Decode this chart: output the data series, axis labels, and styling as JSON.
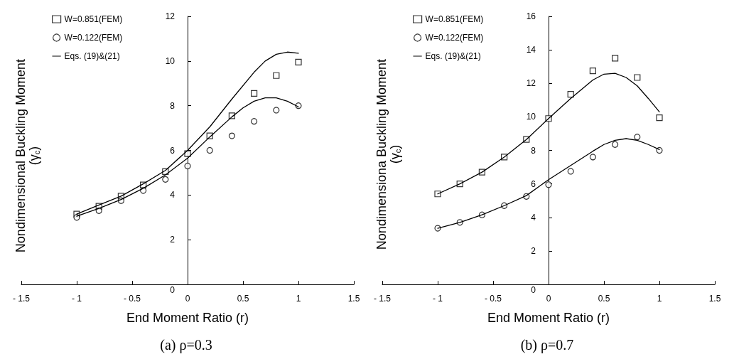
{
  "chart_data": [
    {
      "type": "scatter",
      "title": "(a) ρ=0.3",
      "xlabel": "End Moment Ratio (r)",
      "ylabel": "Nondimensional Buckling Moment\n(γ$_{c}$)",
      "xlim": [
        -1.5,
        1.5
      ],
      "xticks": [
        {
          "value": -1.5,
          "label": "- 1.5"
        },
        {
          "value": -1,
          "label": "- 1"
        },
        {
          "value": -0.5,
          "label": "- 0.5"
        },
        0,
        0.5,
        1,
        1.5
      ],
      "ylim": [
        0,
        12
      ],
      "yticks": [
        0,
        2,
        4,
        6,
        8,
        10,
        12
      ],
      "grid": false,
      "legend": "top left",
      "series": [
        {
          "name": "W=0.851(FEM)",
          "marker": "square",
          "color": "#000000",
          "x": [
            -1,
            -0.8,
            -0.6,
            -0.4,
            -0.2,
            0,
            0.2,
            0.4,
            0.6,
            0.8,
            1
          ],
          "values": [
            3.15,
            3.5,
            3.95,
            4.45,
            5.05,
            5.85,
            6.65,
            7.55,
            8.55,
            9.35,
            9.95
          ]
        },
        {
          "name": "W=0.122(FEM)",
          "marker": "circle",
          "color": "#000000",
          "x": [
            -1,
            -0.8,
            -0.6,
            -0.4,
            -0.2,
            0,
            0.2,
            0.4,
            0.6,
            0.8,
            1
          ],
          "values": [
            3.0,
            3.3,
            3.75,
            4.2,
            4.7,
            5.3,
            6.0,
            6.65,
            7.3,
            7.8,
            8.0
          ]
        },
        {
          "name": "Eqs. (19)&(21)",
          "type": "line",
          "marker": "none",
          "line_style": "solid",
          "color": "#000000",
          "x": [
            -1,
            -0.8,
            -0.6,
            -0.4,
            -0.2,
            0,
            0.2,
            0.4,
            0.6,
            0.7,
            0.8,
            0.9,
            1
          ],
          "values": [
            3.15,
            3.55,
            3.95,
            4.5,
            5.1,
            6.0,
            7.05,
            8.3,
            9.5,
            10.0,
            10.3,
            10.4,
            10.35
          ]
        },
        {
          "type": "line",
          "marker": "none",
          "line_style": "solid",
          "color": "#000000",
          "x": [
            -1,
            -0.8,
            -0.6,
            -0.4,
            -0.2,
            0,
            0.2,
            0.4,
            0.5,
            0.6,
            0.7,
            0.8,
            0.9,
            1
          ],
          "values": [
            3.05,
            3.4,
            3.8,
            4.3,
            4.9,
            5.65,
            6.6,
            7.5,
            7.9,
            8.2,
            8.35,
            8.35,
            8.2,
            7.95
          ]
        }
      ]
    },
    {
      "type": "scatter",
      "title": "(b) ρ=0.7",
      "xlabel": "End Moment Ratio (r)",
      "ylabel": "Nondimensiona Buckling Moment\n(γ$_{c}$)",
      "xlim": [
        -1.5,
        1.5
      ],
      "xticks": [
        {
          "value": -1.5,
          "label": "- 1.5"
        },
        {
          "value": -1,
          "label": "- 1"
        },
        {
          "value": -0.5,
          "label": "- 0.5"
        },
        0,
        0.5,
        1,
        1.5
      ],
      "ylim": [
        0,
        16
      ],
      "yticks": [
        0,
        2,
        4,
        6,
        8,
        10,
        12,
        14,
        16
      ],
      "grid": false,
      "legend": "top left",
      "series": [
        {
          "name": "W=0.851(FEM)",
          "marker": "square",
          "color": "#000000",
          "x": [
            -1,
            -0.8,
            -0.6,
            -0.4,
            -0.2,
            0,
            0.2,
            0.4,
            0.6,
            0.8,
            1
          ],
          "values": [
            5.4,
            6.0,
            6.7,
            7.6,
            8.65,
            9.9,
            11.35,
            12.75,
            13.5,
            12.35,
            9.95
          ]
        },
        {
          "name": "W=0.122(FEM)",
          "marker": "circle",
          "color": "#000000",
          "x": [
            -1,
            -0.8,
            -0.6,
            -0.4,
            -0.2,
            0,
            0.2,
            0.4,
            0.6,
            0.8,
            1
          ],
          "values": [
            3.35,
            3.7,
            4.15,
            4.7,
            5.25,
            5.95,
            6.75,
            7.6,
            8.35,
            8.8,
            8.0
          ]
        },
        {
          "name": "Eqs. (19)&(21)",
          "type": "line",
          "marker": "none",
          "line_style": "solid",
          "color": "#000000",
          "x": [
            -1,
            -0.8,
            -0.6,
            -0.4,
            -0.2,
            0,
            0.2,
            0.4,
            0.5,
            0.6,
            0.7,
            0.8,
            0.9,
            1
          ],
          "values": [
            5.4,
            6.0,
            6.7,
            7.6,
            8.65,
            9.9,
            11.1,
            12.2,
            12.55,
            12.6,
            12.35,
            11.85,
            11.1,
            10.3
          ]
        },
        {
          "type": "line",
          "marker": "none",
          "line_style": "solid",
          "color": "#000000",
          "x": [
            -1,
            -0.8,
            -0.6,
            -0.4,
            -0.2,
            0,
            0.2,
            0.4,
            0.5,
            0.6,
            0.7,
            0.8,
            0.9,
            1
          ],
          "values": [
            3.35,
            3.7,
            4.15,
            4.7,
            5.3,
            6.25,
            7.1,
            7.95,
            8.35,
            8.6,
            8.7,
            8.6,
            8.35,
            8.05
          ]
        }
      ]
    }
  ]
}
